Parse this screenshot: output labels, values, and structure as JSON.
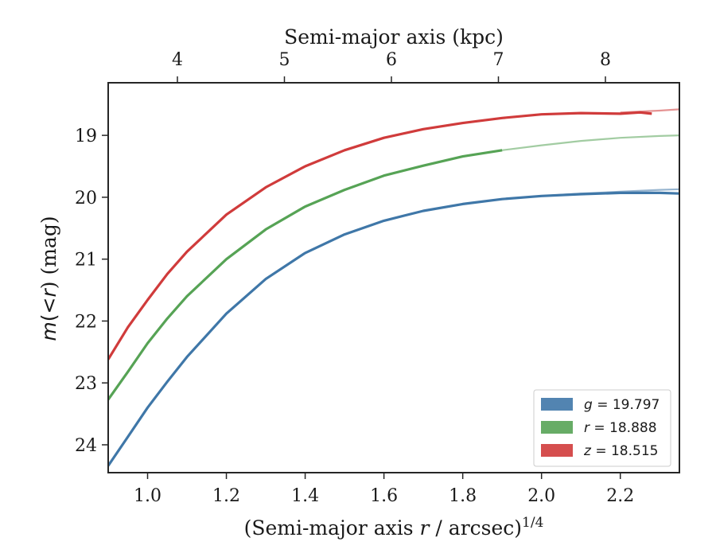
{
  "chart_data": {
    "type": "line",
    "xlabel_main": "(Semi-major axis ",
    "xlabel_var": "r",
    "xlabel_tail": " / arcsec)",
    "xlabel_sup": "1/4",
    "ylabel_m": "m",
    "ylabel_mid": "(<",
    "ylabel_r": "r",
    "ylabel_tail": ") (mag)",
    "top_xlabel": "Semi-major axis (kpc)",
    "xlim": [
      0.9,
      2.35
    ],
    "ylim_top_to_bottom": [
      18.15,
      24.45
    ],
    "y_inverted": true,
    "x_ticks": [
      {
        "value": 1.0,
        "label": "1.0"
      },
      {
        "value": 1.2,
        "label": "1.2"
      },
      {
        "value": 1.4,
        "label": "1.4"
      },
      {
        "value": 1.6,
        "label": "1.6"
      },
      {
        "value": 1.8,
        "label": "1.8"
      },
      {
        "value": 2.0,
        "label": "2.0"
      },
      {
        "value": 2.2,
        "label": "2.2"
      }
    ],
    "y_ticks": [
      {
        "value": 19,
        "label": "19"
      },
      {
        "value": 20,
        "label": "20"
      },
      {
        "value": 21,
        "label": "21"
      },
      {
        "value": 22,
        "label": "22"
      },
      {
        "value": 23,
        "label": "23"
      },
      {
        "value": 24,
        "label": "24"
      }
    ],
    "top_ticks": [
      {
        "value": 4,
        "label": "4"
      },
      {
        "value": 5,
        "label": "5"
      },
      {
        "value": 6,
        "label": "6"
      },
      {
        "value": 7,
        "label": "7"
      },
      {
        "value": 8,
        "label": "8"
      }
    ],
    "grid": false,
    "legend_position": "bottom-right",
    "series": [
      {
        "name": "g = 19.797",
        "band": "g",
        "mag_value": "19.797",
        "color": "#3f77a8",
        "measured": [
          [
            0.9,
            24.34
          ],
          [
            0.95,
            23.87
          ],
          [
            1.0,
            23.4
          ],
          [
            1.05,
            22.98
          ],
          [
            1.1,
            22.58
          ],
          [
            1.2,
            21.88
          ],
          [
            1.3,
            21.32
          ],
          [
            1.4,
            20.9
          ],
          [
            1.5,
            20.6
          ],
          [
            1.6,
            20.38
          ],
          [
            1.7,
            20.22
          ],
          [
            1.8,
            20.11
          ],
          [
            1.9,
            20.03
          ],
          [
            2.0,
            19.98
          ],
          [
            2.1,
            19.95
          ],
          [
            2.2,
            19.93
          ],
          [
            2.3,
            19.93
          ],
          [
            2.35,
            19.94
          ]
        ],
        "model": [
          [
            2.0,
            19.98
          ],
          [
            2.1,
            19.94
          ],
          [
            2.2,
            19.91
          ],
          [
            2.3,
            19.88
          ],
          [
            2.35,
            19.87
          ]
        ]
      },
      {
        "name": "r = 18.888",
        "band": "r",
        "mag_value": "18.888",
        "color": "#56a355",
        "measured": [
          [
            0.9,
            23.27
          ],
          [
            0.95,
            22.82
          ],
          [
            1.0,
            22.36
          ],
          [
            1.05,
            21.96
          ],
          [
            1.1,
            21.6
          ],
          [
            1.2,
            21.0
          ],
          [
            1.3,
            20.52
          ],
          [
            1.4,
            20.15
          ],
          [
            1.5,
            19.88
          ],
          [
            1.6,
            19.65
          ],
          [
            1.7,
            19.49
          ],
          [
            1.8,
            19.34
          ],
          [
            1.9,
            19.24
          ]
        ],
        "model": [
          [
            1.9,
            19.24
          ],
          [
            2.0,
            19.16
          ],
          [
            2.1,
            19.09
          ],
          [
            2.2,
            19.04
          ],
          [
            2.3,
            19.01
          ],
          [
            2.35,
            19.0
          ]
        ]
      },
      {
        "name": "z = 18.515",
        "band": "z",
        "mag_value": "18.515",
        "color": "#d03b3b",
        "measured": [
          [
            0.9,
            22.62
          ],
          [
            0.95,
            22.1
          ],
          [
            1.0,
            21.66
          ],
          [
            1.05,
            21.24
          ],
          [
            1.1,
            20.88
          ],
          [
            1.2,
            20.28
          ],
          [
            1.3,
            19.84
          ],
          [
            1.4,
            19.5
          ],
          [
            1.5,
            19.24
          ],
          [
            1.6,
            19.04
          ],
          [
            1.7,
            18.9
          ],
          [
            1.8,
            18.8
          ],
          [
            1.9,
            18.72
          ],
          [
            2.0,
            18.66
          ],
          [
            2.1,
            18.64
          ],
          [
            2.2,
            18.65
          ],
          [
            2.25,
            18.63
          ],
          [
            2.28,
            18.65
          ]
        ],
        "model": [
          [
            2.2,
            18.63
          ],
          [
            2.3,
            18.6
          ],
          [
            2.35,
            18.58
          ]
        ]
      }
    ]
  }
}
